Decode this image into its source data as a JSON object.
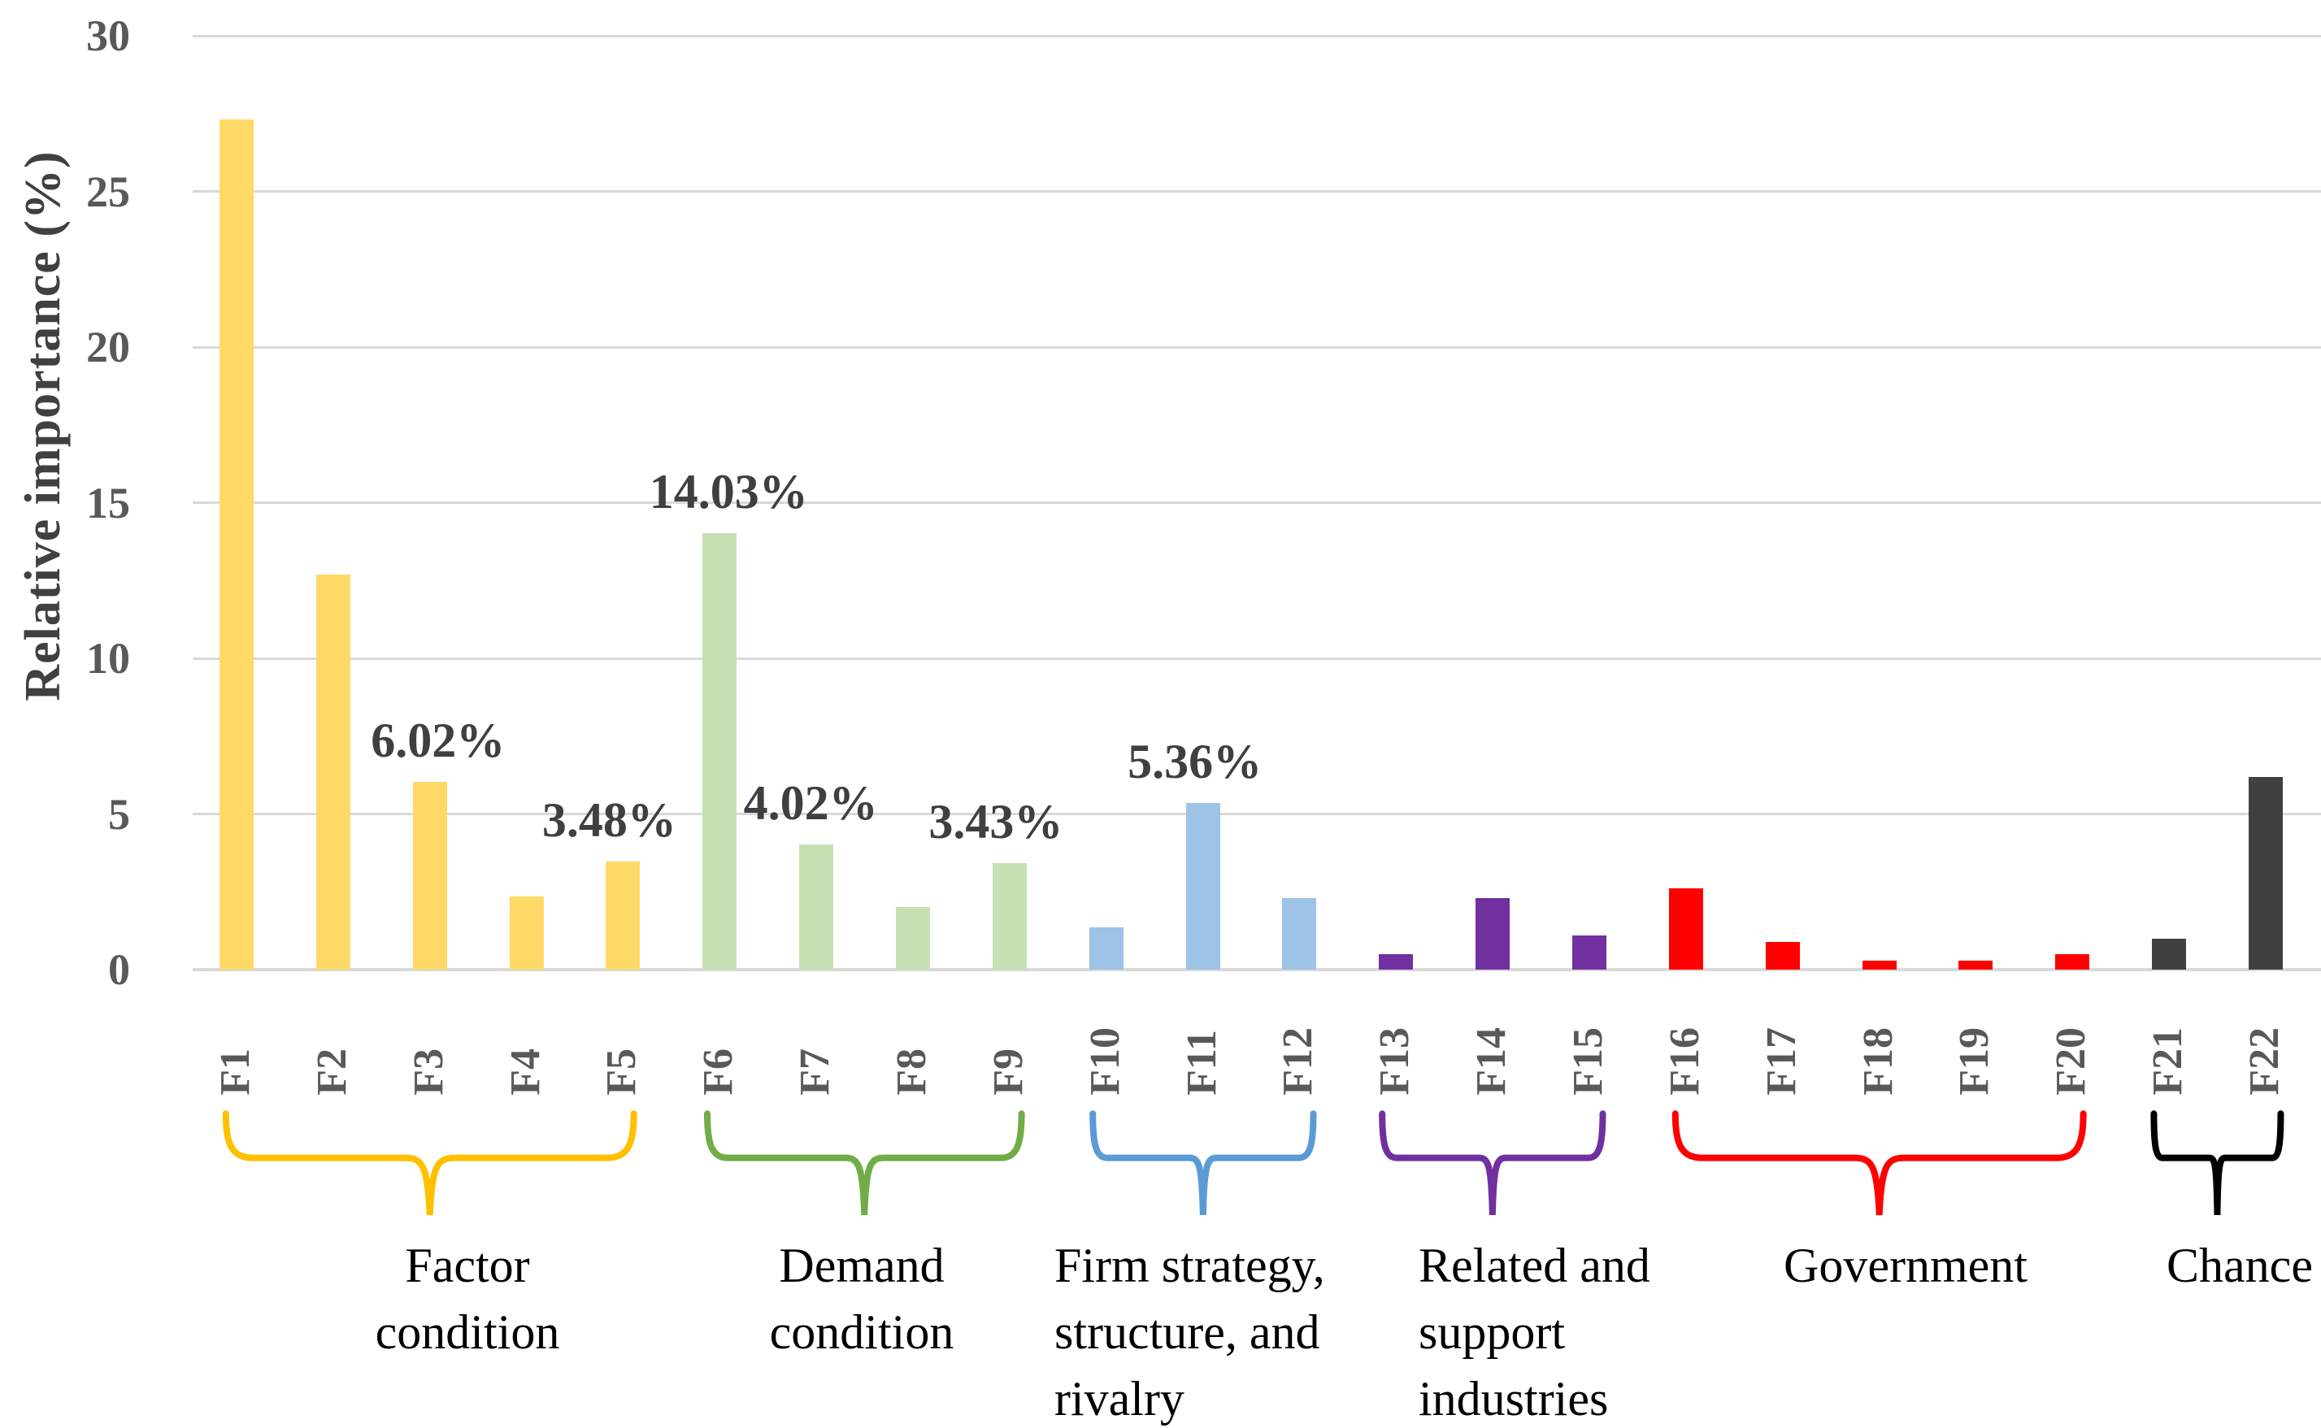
{
  "chart_data": {
    "type": "bar",
    "title": "",
    "ylabel": "Relative importance (%)",
    "ylim": [
      0,
      30
    ],
    "yticks": [
      0,
      5,
      10,
      15,
      20,
      25,
      30
    ],
    "grid": true,
    "background_color": "#FFFFFF",
    "gridline_color": "#D9D9D9",
    "axis_text_color": "#595959",
    "value_label_color": "#3F3F3F",
    "categories": [
      "F1",
      "F2",
      "F3",
      "F4",
      "F5",
      "F6",
      "F7",
      "F8",
      "F9",
      "F10",
      "F11",
      "F12",
      "F13",
      "F14",
      "F15",
      "F16",
      "F17",
      "F18",
      "F19",
      "F20",
      "F21",
      "F22"
    ],
    "values": [
      27.3,
      12.7,
      6.02,
      2.35,
      3.48,
      14.03,
      4.02,
      2.0,
      3.43,
      1.35,
      5.36,
      2.3,
      0.5,
      2.3,
      1.1,
      2.6,
      0.9,
      0.3,
      0.3,
      0.5,
      1.0,
      6.2
    ],
    "value_labels": [
      {
        "text": "6.02%",
        "category": "F3",
        "dx": 10
      },
      {
        "text": "3.48%",
        "category": "F5",
        "dx": -17
      },
      {
        "text": "14.03%",
        "category": "F6",
        "dx": 11
      },
      {
        "text": "4.02%",
        "category": "F7",
        "dx": -7
      },
      {
        "text": "3.43%",
        "category": "F9",
        "dx": -17
      },
      {
        "text": "5.36%",
        "category": "F11",
        "dx": -10
      }
    ],
    "groups": [
      {
        "name": "Factor condition",
        "label_lines": [
          "Factor",
          "condition"
        ],
        "first": "F1",
        "last": "F5",
        "bar_color": "#FFD966",
        "brace_color": "#FFC000",
        "label_x": 575,
        "align": "center"
      },
      {
        "name": "Demand condition",
        "label_lines": [
          "Demand",
          "condition"
        ],
        "first": "F6",
        "last": "F9",
        "bar_color": "#C6E0B4",
        "brace_color": "#70AD47",
        "label_x": 1060,
        "align": "center"
      },
      {
        "name": "Firm strategy, structure, and rivalry",
        "label_lines": [
          "Firm strategy,",
          "structure, and",
          "rivalry"
        ],
        "first": "F10",
        "last": "F12",
        "bar_color": "#9DC3E6",
        "brace_color": "#5B9BD5",
        "label_x": 1297,
        "align": "left"
      },
      {
        "name": "Related and support industries",
        "label_lines": [
          "Related and",
          "support",
          "industries"
        ],
        "first": "F13",
        "last": "F15",
        "bar_color": "#7030A0",
        "brace_color": "#7030A0",
        "label_x": 1745,
        "align": "left"
      },
      {
        "name": "Government",
        "label_lines": [
          "Government"
        ],
        "first": "F16",
        "last": "F20",
        "bar_color": "#FF0000",
        "brace_color": "#FF0000",
        "label_x": 2344,
        "align": "center"
      },
      {
        "name": "Chance",
        "label_lines": [
          "Chance"
        ],
        "first": "F21",
        "last": "F22",
        "bar_color": "#404040",
        "brace_color": "#000000",
        "label_x": 2755,
        "align": "center"
      }
    ]
  }
}
